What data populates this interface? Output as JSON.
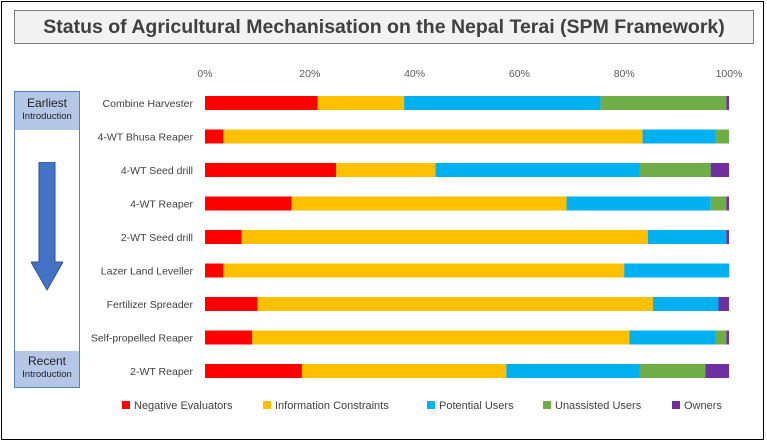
{
  "header": {
    "title": "Status of Agricultural Mechanisation on the Nepal Terai (SPM Framework)"
  },
  "timeline": {
    "top_big": "Earliest",
    "top_small": "Introduction",
    "bottom_big": "Recent",
    "bottom_small": "Introduction",
    "arrow_icon": "down-arrow-icon",
    "arrow_color": "#4472c4",
    "box_color": "#b4c7e7"
  },
  "chart_data": {
    "type": "bar",
    "orientation": "horizontal",
    "stacked": true,
    "percent": true,
    "xlim": [
      0,
      100
    ],
    "xticks": [
      "0%",
      "20%",
      "40%",
      "60%",
      "80%",
      "100%"
    ],
    "grid": false,
    "legend_position": "bottom",
    "categories": [
      "Combine Harvester",
      "4-WT Bhusa Reaper",
      "4-WT Seed drill",
      "4-WT Reaper",
      "2-WT Seed drill",
      "Lazer Land Leveller",
      "Fertilizer Spreader",
      "Self-propelled Reaper",
      "2-WT Reaper"
    ],
    "series": [
      {
        "name": "Negative Evaluators",
        "color": "#ff0000",
        "values": [
          21.5,
          3.5,
          25,
          16.5,
          7,
          3.5,
          10,
          9,
          18.5
        ]
      },
      {
        "name": "Information Constraints",
        "color": "#ffc000",
        "values": [
          16.5,
          80,
          19,
          52.5,
          77.5,
          76.5,
          75.5,
          72,
          39
        ]
      },
      {
        "name": "Potential Users",
        "color": "#00b0f0",
        "values": [
          37.5,
          14,
          39,
          27.5,
          15,
          20,
          12.5,
          16.5,
          25.5
        ]
      },
      {
        "name": "Unassisted Users",
        "color": "#70ad47",
        "values": [
          24,
          2.5,
          13.5,
          3,
          0,
          0,
          0,
          2,
          12.5
        ]
      },
      {
        "name": "Owners",
        "color": "#7030a0",
        "values": [
          0.5,
          0,
          3.5,
          0.5,
          0.5,
          0,
          2,
          0.5,
          4.5
        ]
      }
    ]
  }
}
